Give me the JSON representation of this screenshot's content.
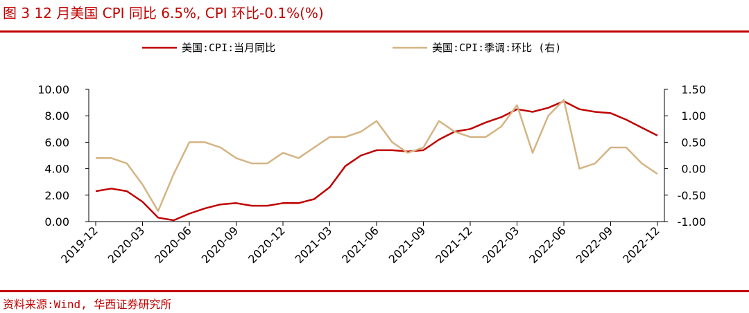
{
  "title": "图 3 12 月美国 CPI 同比 6.5%, CPI 环比-0.1%(%)",
  "source": "资料来源:Wind, 华西证券研究所",
  "chart_data": {
    "type": "line",
    "x": [
      "2019-12",
      "2020-01",
      "2020-02",
      "2020-03",
      "2020-04",
      "2020-05",
      "2020-06",
      "2020-07",
      "2020-08",
      "2020-09",
      "2020-10",
      "2020-11",
      "2020-12",
      "2021-01",
      "2021-02",
      "2021-03",
      "2021-04",
      "2021-05",
      "2021-06",
      "2021-07",
      "2021-08",
      "2021-09",
      "2021-10",
      "2021-11",
      "2021-12",
      "2022-01",
      "2022-02",
      "2022-03",
      "2022-04",
      "2022-05",
      "2022-06",
      "2022-07",
      "2022-08",
      "2022-09",
      "2022-10",
      "2022-11",
      "2022-12"
    ],
    "xticks": [
      "2019-12",
      "2020-03",
      "2020-06",
      "2020-09",
      "2020-12",
      "2021-03",
      "2021-06",
      "2021-09",
      "2021-12",
      "2022-03",
      "2022-06",
      "2022-09",
      "2022-12"
    ],
    "series": [
      {
        "name": "美国:CPI:当月同比",
        "axis": "left",
        "color": "#c00000",
        "values": [
          2.3,
          2.5,
          2.3,
          1.5,
          0.3,
          0.1,
          0.6,
          1.0,
          1.3,
          1.4,
          1.2,
          1.2,
          1.4,
          1.4,
          1.7,
          2.6,
          4.2,
          5.0,
          5.4,
          5.4,
          5.3,
          5.4,
          6.2,
          6.8,
          7.0,
          7.5,
          7.9,
          8.5,
          8.3,
          8.6,
          9.1,
          8.5,
          8.3,
          8.2,
          7.7,
          7.1,
          6.5
        ]
      },
      {
        "name": "美国:CPI:季调:环比 (右)",
        "axis": "right",
        "color": "#d4b483",
        "values": [
          0.2,
          0.2,
          0.1,
          -0.3,
          -0.8,
          -0.1,
          0.5,
          0.5,
          0.4,
          0.2,
          0.1,
          0.1,
          0.3,
          0.2,
          0.4,
          0.6,
          0.6,
          0.7,
          0.9,
          0.5,
          0.3,
          0.4,
          0.9,
          0.7,
          0.6,
          0.6,
          0.8,
          1.2,
          0.3,
          1.0,
          1.3,
          0.0,
          0.1,
          0.4,
          0.4,
          0.1,
          -0.1
        ]
      }
    ],
    "yleft": {
      "min": 0,
      "max": 10,
      "ticks": [
        "0.00",
        "2.00",
        "4.00",
        "6.00",
        "8.00",
        "10.00"
      ]
    },
    "yright": {
      "min": -1,
      "max": 1.5,
      "ticks": [
        "-1.00",
        "-0.50",
        "0.00",
        "0.50",
        "1.00",
        "1.50"
      ]
    },
    "legend_position": "top",
    "grid": false
  }
}
